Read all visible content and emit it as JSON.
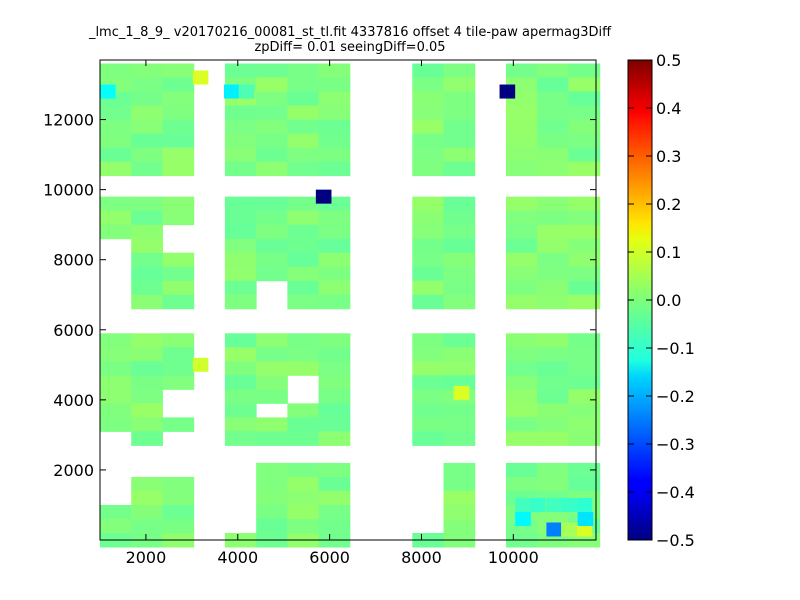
{
  "chart_data": {
    "type": "heatmap",
    "title_line1": "_lmc_1_8_9_ v20170216_00081_st_tl.fit 4337816 offset 4 tile-paw apermag3Diff",
    "title_line2": "zpDiff= 0.01 seeingDiff=0.05",
    "xlabel": "",
    "ylabel": "",
    "xlim": [
      1000,
      11800
    ],
    "ylim": [
      0,
      13700
    ],
    "x_ticks": [
      2000,
      4000,
      6000,
      8000,
      10000
    ],
    "y_ticks": [
      2000,
      4000,
      6000,
      8000,
      10000,
      12000
    ],
    "colorbar": {
      "colormap": "jet",
      "vmin": -0.5,
      "vmax": 0.5,
      "ticks": [
        0.5,
        0.4,
        0.3,
        0.2,
        0.1,
        0.0,
        -0.1,
        -0.2,
        -0.3,
        -0.4,
        -0.5
      ],
      "tick_labels": [
        "0.5",
        "0.4",
        "0.3",
        "0.2",
        "0.1",
        "0.0",
        "−0.1",
        "−0.2",
        "−0.3",
        "−0.4",
        "−0.5"
      ]
    },
    "cell_size": [
      680,
      400
    ],
    "grid": false,
    "base_value": 0.0,
    "x_columns": [
      1000,
      1680,
      2360,
      3040,
      3720,
      4400,
      5080,
      5760,
      6440,
      7120,
      7800,
      8480,
      9160,
      9840,
      10520,
      11200
    ],
    "y_bands": [
      {
        "y_start": 13600,
        "rows": 8,
        "columns_present": [
          0,
          1,
          2,
          4,
          5,
          6,
          7,
          10,
          11,
          13,
          14,
          15
        ],
        "gaps": [
          [
            1,
            13
          ],
          [
            2,
            13
          ],
          [
            5,
            13
          ],
          [
            6,
            13
          ],
          [
            7,
            13
          ],
          [
            3,
            13
          ],
          [
            10,
            13
          ],
          [
            14,
            12
          ],
          [
            15,
            12
          ],
          [
            13,
            12
          ]
        ]
      },
      {
        "y_start": 9800,
        "rows": 8,
        "columns_present": [
          0,
          1,
          2,
          4,
          5,
          6,
          7,
          10,
          11,
          13,
          14,
          15
        ],
        "gaps": [
          [
            0,
            3
          ],
          [
            0,
            4
          ],
          [
            0,
            5
          ],
          [
            0,
            6
          ],
          [
            0,
            7
          ],
          [
            2,
            2
          ],
          [
            2,
            3
          ],
          [
            5,
            6
          ],
          [
            5,
            7
          ]
        ]
      },
      {
        "y_start": 5900,
        "rows": 8,
        "columns_present": [
          0,
          1,
          2,
          4,
          5,
          6,
          7,
          10,
          11,
          13,
          14,
          15
        ],
        "gaps": [
          [
            2,
            4
          ],
          [
            2,
            5
          ],
          [
            6,
            3
          ],
          [
            6,
            4
          ],
          [
            5,
            5
          ],
          [
            0,
            7
          ],
          [
            2,
            7
          ],
          [
            3,
            7
          ]
        ]
      },
      {
        "y_start": 2200,
        "rows": 6,
        "columns_present": [
          0,
          1,
          2,
          4,
          5,
          6,
          7,
          10,
          11,
          13,
          14,
          15
        ],
        "gaps": [
          [
            0,
            0
          ],
          [
            0,
            1
          ],
          [
            0,
            2
          ],
          [
            1,
            0
          ],
          [
            2,
            0
          ],
          [
            4,
            0
          ],
          [
            4,
            1
          ],
          [
            4,
            2
          ],
          [
            4,
            3
          ],
          [
            4,
            4
          ],
          [
            10,
            0
          ],
          [
            10,
            1
          ],
          [
            10,
            2
          ],
          [
            10,
            3
          ],
          [
            10,
            4
          ]
        ]
      }
    ],
    "anomalies": [
      {
        "x": 1160,
        "y": 12700,
        "value": -0.12
      },
      {
        "x": 3180,
        "y": 13100,
        "value": 0.09
      },
      {
        "x": 3860,
        "y": 12700,
        "value": -0.14
      },
      {
        "x": 5860,
        "y": 9700,
        "value": -0.5
      },
      {
        "x": 9860,
        "y": 12700,
        "value": -0.5
      },
      {
        "x": 3180,
        "y": 4900,
        "value": 0.08
      },
      {
        "x": 8860,
        "y": 4100,
        "value": 0.09
      },
      {
        "x": 10200,
        "y": 500,
        "value": -0.13
      },
      {
        "x": 10880,
        "y": 200,
        "value": -0.25
      },
      {
        "x": 11540,
        "y": 200,
        "value": 0.09
      },
      {
        "x": 11560,
        "y": 500,
        "value": -0.15
      },
      {
        "x": 11200,
        "y": 200,
        "value": 0.04
      },
      {
        "x": 10200,
        "y": 900,
        "value": -0.06
      },
      {
        "x": 10520,
        "y": 900,
        "value": -0.07
      },
      {
        "x": 10880,
        "y": 900,
        "value": -0.06
      },
      {
        "x": 11200,
        "y": 900,
        "value": -0.07
      },
      {
        "x": 11540,
        "y": 900,
        "value": -0.08
      },
      {
        "x": 4180,
        "y": 12700,
        "value": -0.05
      }
    ]
  }
}
